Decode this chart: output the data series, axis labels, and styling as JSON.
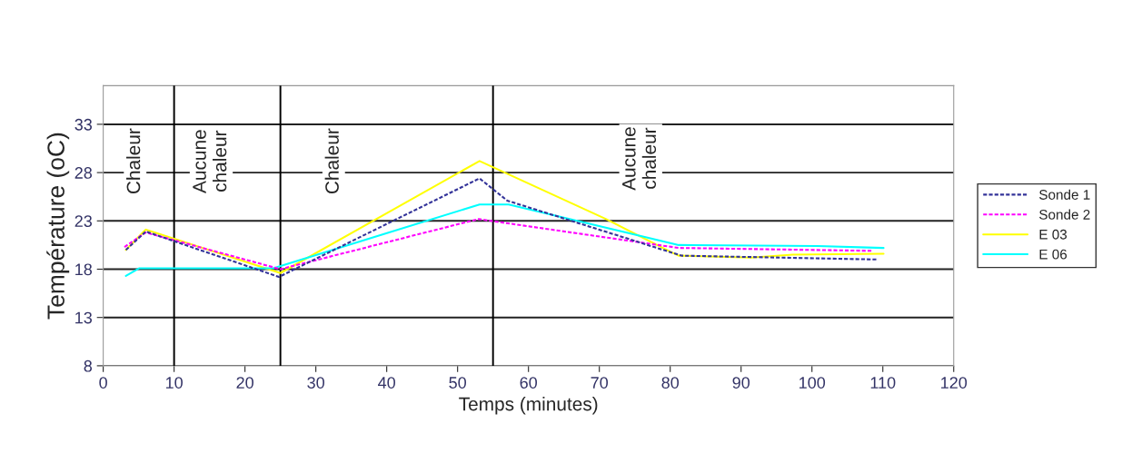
{
  "chart_data": {
    "type": "line",
    "xlabel": "Temps (minutes)",
    "ylabel": "Température (oC)",
    "xlim": [
      0,
      120
    ],
    "xticks": [
      0,
      10,
      20,
      30,
      40,
      50,
      60,
      70,
      80,
      90,
      100,
      110,
      120
    ],
    "ylim": [
      8,
      37
    ],
    "yticks": [
      8,
      13,
      18,
      23,
      28,
      33
    ],
    "grid": "y",
    "legend": "right",
    "series": [
      {
        "name": "Sonde 1",
        "color": "#333399",
        "line_style": "dashed",
        "x": [
          3.2,
          6,
          24.8,
          53.1,
          57,
          80.3,
          81.6,
          109.3
        ],
        "values": [
          20.0,
          21.9,
          17.2,
          27.4,
          25.1,
          19.7,
          19.4,
          19.0
        ]
      },
      {
        "name": "Sonde 2",
        "color": "#ff00ff",
        "line_style": "dashed",
        "x": [
          3.0,
          6,
          25,
          53,
          54.7,
          81.2,
          108.4
        ],
        "values": [
          20.3,
          21.8,
          18.0,
          23.2,
          23.0,
          20.2,
          19.9
        ]
      },
      {
        "name": "E 03",
        "color": "#ffff00",
        "line_style": "solid",
        "x": [
          3.2,
          6,
          25,
          53.1,
          70.9,
          80.3,
          81.2,
          91.4,
          97.3,
          110.1
        ],
        "values": [
          20.0,
          22.1,
          17.6,
          29.2,
          23.2,
          19.7,
          19.4,
          19.2,
          19.5,
          19.6
        ]
      },
      {
        "name": "E 06",
        "color": "#00ffff",
        "line_style": "solid",
        "x": [
          3.2,
          5.1,
          24,
          53.1,
          57.2,
          81.2,
          100.8,
          110.1
        ],
        "values": [
          17.3,
          18.1,
          18.1,
          24.7,
          24.7,
          20.5,
          20.4,
          20.2
        ]
      }
    ],
    "ref_lines": [
      {
        "axis": "x",
        "value": 10,
        "color": "#000000"
      },
      {
        "axis": "x",
        "value": 25,
        "color": "#000000"
      },
      {
        "axis": "x",
        "value": 55,
        "color": "#000000"
      }
    ],
    "annotations": [
      "Chaleur",
      "Aucune\nchaleur",
      "Chaleur",
      "Aucune\nchaleur"
    ]
  }
}
